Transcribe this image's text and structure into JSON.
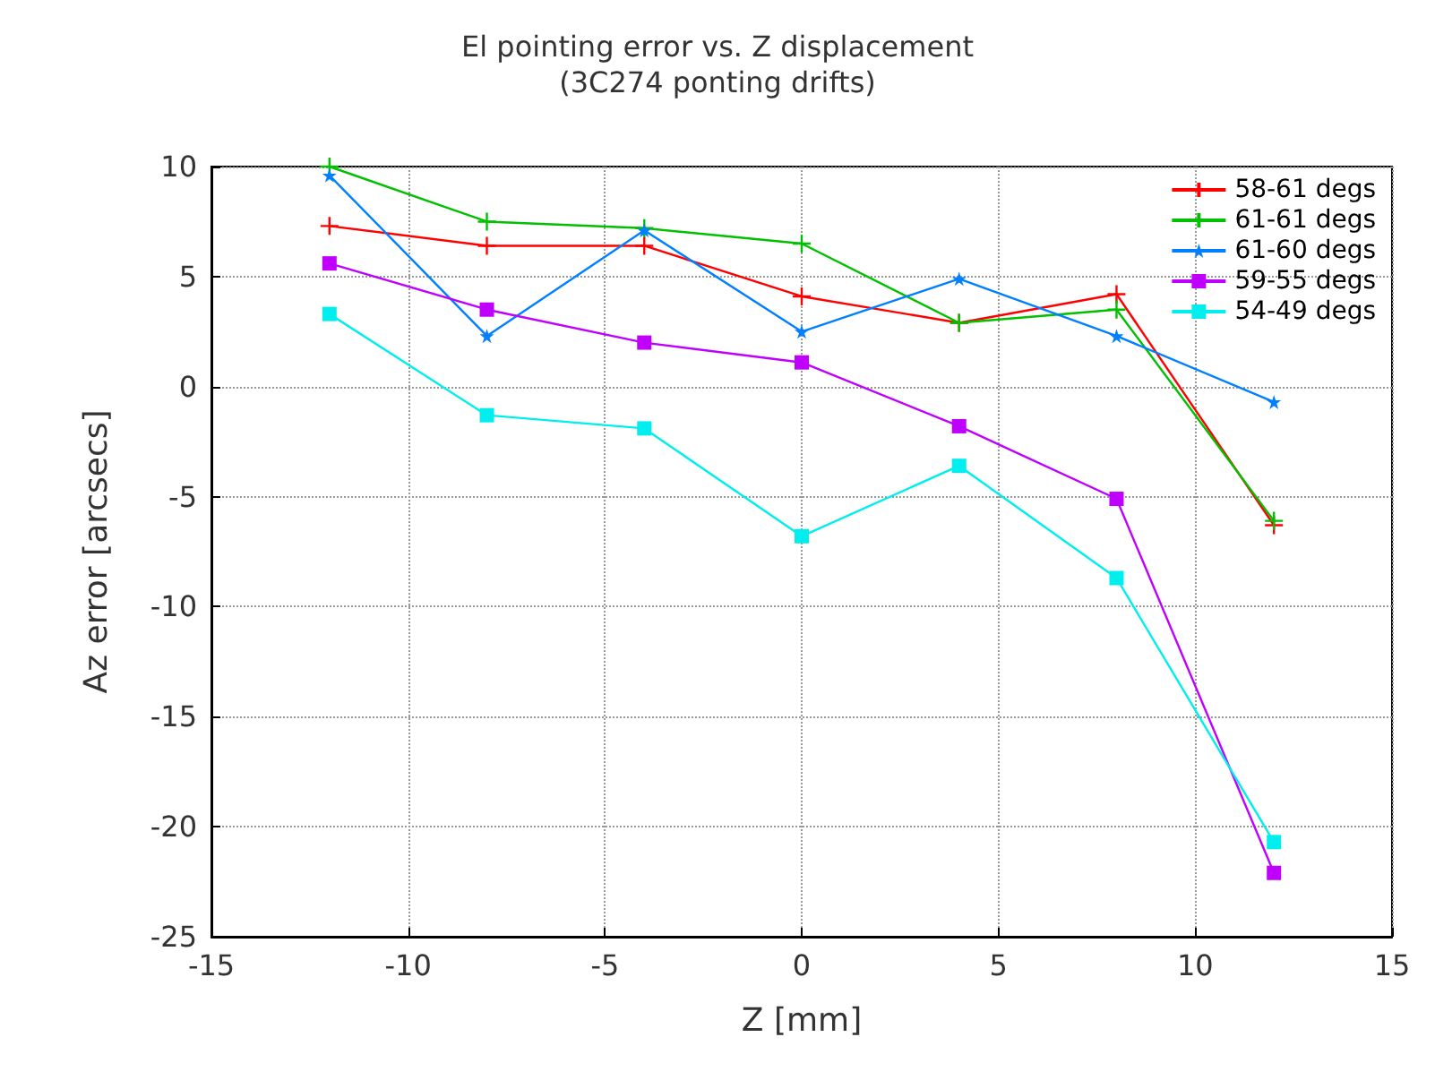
{
  "chart_data": {
    "type": "line",
    "title": "El pointing error vs. Z displacement",
    "subtitle": "(3C274 ponting drifts)",
    "xlabel": "Z [mm]",
    "ylabel": "Az error [arcsecs]",
    "x": [
      -12,
      -8,
      -4,
      0,
      4,
      8,
      12
    ],
    "xlim": [
      -15,
      15
    ],
    "xticks": [
      -15,
      -10,
      -5,
      0,
      5,
      10,
      15
    ],
    "ylim": [
      -25,
      10
    ],
    "yticks": [
      -25,
      -20,
      -15,
      -10,
      -5,
      0,
      5,
      10
    ],
    "grid": true,
    "legend": "top right",
    "line_style": "solid",
    "series": [
      {
        "name": "58-61 degs",
        "color": "#ff0000",
        "marker": "cross",
        "values": [
          7.3,
          6.4,
          6.4,
          4.1,
          2.9,
          4.2,
          -6.3
        ]
      },
      {
        "name": "61-61 degs",
        "color": "#00c000",
        "marker": "cross",
        "values": [
          10,
          7.5,
          7.2,
          6.5,
          2.9,
          3.5,
          -6.1
        ]
      },
      {
        "name": "61-60 degs",
        "color": "#0080ff",
        "marker": "star",
        "values": [
          9.6,
          2.3,
          7.1,
          2.5,
          4.9,
          2.3,
          -0.7
        ]
      },
      {
        "name": "59-55 degs",
        "color": "#c000ff",
        "marker": "square",
        "values": [
          5.6,
          3.5,
          2.0,
          1.1,
          -1.8,
          -5.1,
          -22.1
        ]
      },
      {
        "name": "54-49 degs",
        "color": "#00eeee",
        "marker": "square",
        "values": [
          3.3,
          -1.3,
          -1.9,
          -6.8,
          -3.6,
          -8.7,
          -20.7
        ]
      }
    ]
  }
}
